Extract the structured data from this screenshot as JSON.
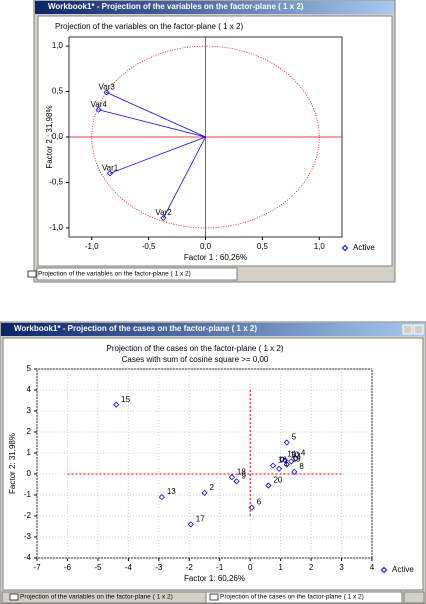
{
  "chart_data": [
    {
      "type": "scatter",
      "window_title": "Workbook1* - Projection of the variables on the factor-plane ( 1 x 2)",
      "title": "Projection of the variables on the factor-plane ( 1 x 2)",
      "x_label": "Factor 1 : 60,26%",
      "y_label": "Factor 2 : 31,98%",
      "xlim": [
        -1.2,
        1.2
      ],
      "ylim": [
        -1.1,
        1.1
      ],
      "xticks": [
        {
          "value": -1,
          "label": "-1,0"
        },
        {
          "value": -0.5,
          "label": "-0,5"
        },
        {
          "value": 0,
          "label": "0,0"
        },
        {
          "value": 0.5,
          "label": "0,5"
        },
        {
          "value": 1,
          "label": "1,0"
        }
      ],
      "yticks": [
        {
          "value": -1,
          "label": "-1,0"
        },
        {
          "value": -0.5,
          "label": "-0,5"
        },
        {
          "value": 0,
          "label": "0,0"
        },
        {
          "value": 0.5,
          "label": "0,5"
        },
        {
          "value": 1,
          "label": "1,0"
        }
      ],
      "grid": false,
      "vectors": true,
      "series": [
        {
          "name": "Active",
          "color": "#0000ff",
          "point_labels": [
            "Var1",
            "Var2",
            "Var3",
            "Var4"
          ],
          "x": [
            -0.84,
            -0.37,
            -0.87,
            -0.94
          ],
          "values": [
            -0.4,
            -0.89,
            0.49,
            0.3
          ]
        }
      ],
      "tabs": [
        "Projection of the variables on the factor-plane ( 1 x 2)"
      ]
    },
    {
      "type": "scatter",
      "window_title": "Workbook1* - Projection of the cases on the factor-plane ( 1 x 2)",
      "title": "Projection of the cases on the factor-plane ( 1 x 2)",
      "subtitle": "Cases with sum of cosine square >= 0,00",
      "x_label": "Factor 1: 60,26%",
      "y_label": "Factor 2: 31,98%",
      "xlim": [
        -7,
        4
      ],
      "ylim": [
        -4,
        5
      ],
      "xticks": [
        -7,
        -6,
        -5,
        -4,
        -3,
        -2,
        -1,
        0,
        1,
        2,
        3,
        4
      ],
      "yticks": [
        -4,
        -3,
        -2,
        -1,
        0,
        1,
        2,
        3,
        4,
        5
      ],
      "grid": true,
      "vectors": false,
      "series": [
        {
          "name": "Active",
          "color": "#0000ff",
          "point_labels": [
            "1",
            "2",
            "3",
            "4",
            "5",
            "6",
            "8",
            "9",
            "10",
            "13",
            "14",
            "15",
            "16",
            "17",
            "18",
            "19",
            "20"
          ],
          "x": [
            0.95,
            -1.5,
            1.35,
            1.5,
            1.2,
            0.05,
            1.45,
            -0.45,
            1.15,
            -2.9,
            1.05,
            -4.4,
            0.75,
            -1.95,
            -0.6,
            1.2,
            0.6
          ],
          "values": [
            0.25,
            -0.9,
            0.6,
            0.75,
            1.5,
            -1.6,
            0.1,
            -0.35,
            0.65,
            -1.1,
            0.7,
            3.3,
            0.4,
            -2.4,
            -0.15,
            0.45,
            -0.55
          ]
        }
      ],
      "tabs": [
        "Projection of the variables on the factor-plane ( 1 x 2)",
        "Projection of the cases on the factor-plane ( 1 x 2)"
      ]
    }
  ]
}
